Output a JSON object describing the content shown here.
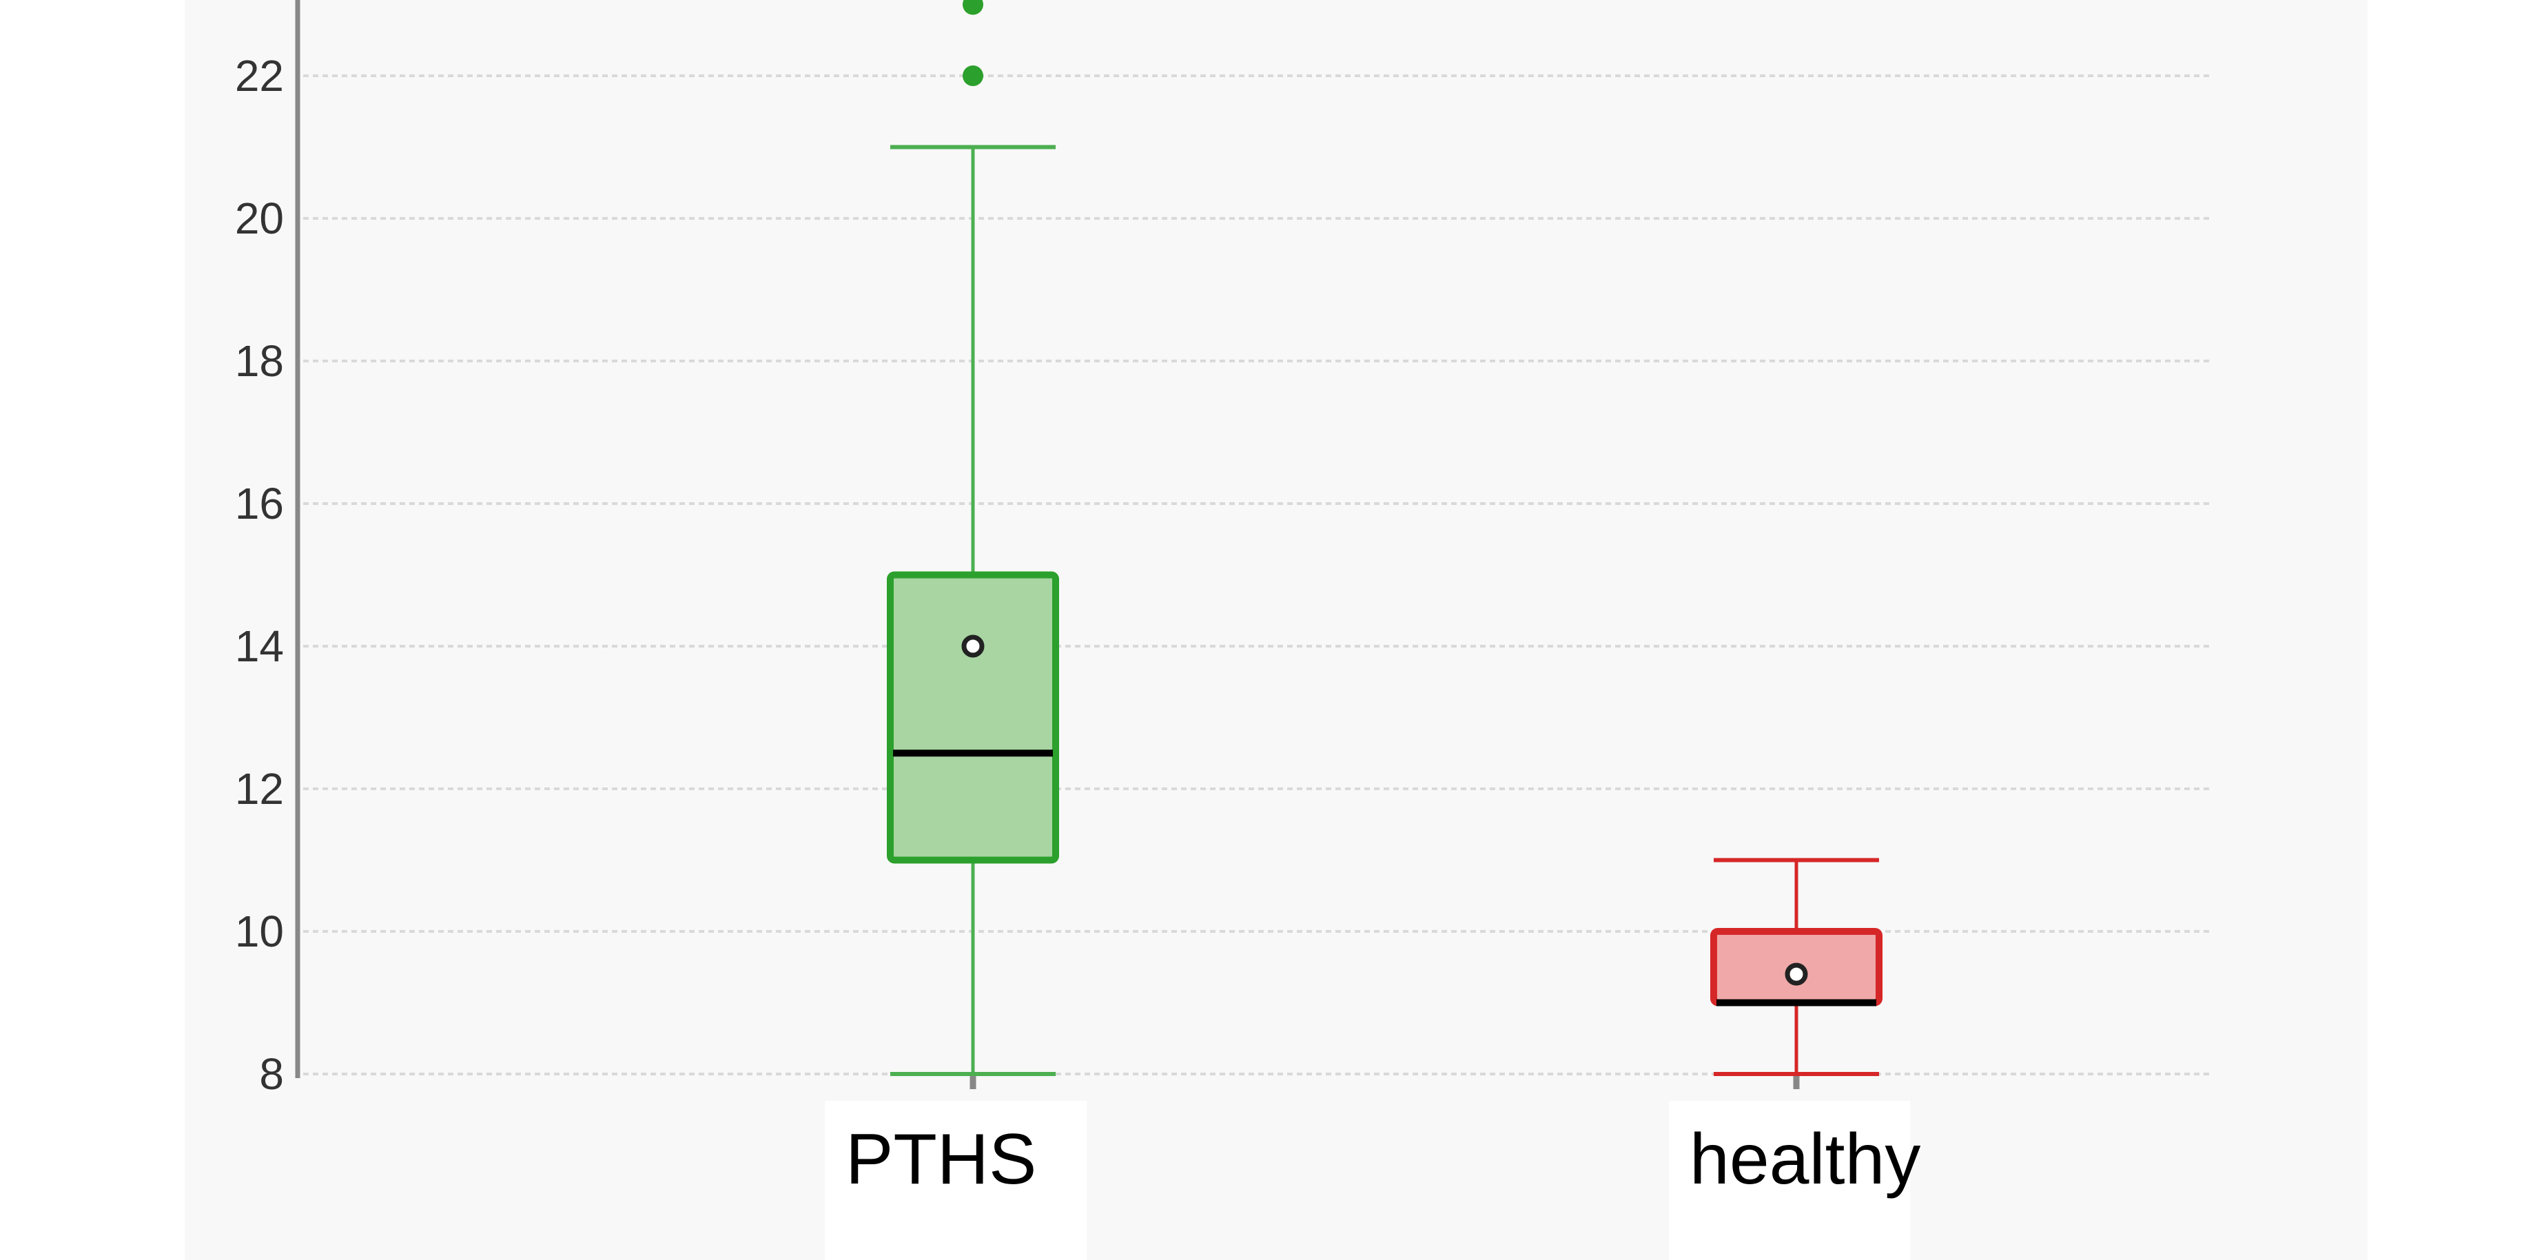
{
  "chart_data": {
    "type": "box",
    "title": "",
    "xlabel": "",
    "ylabel": "",
    "ylim": [
      8,
      23
    ],
    "yticks": [
      8,
      10,
      12,
      14,
      16,
      18,
      20,
      22
    ],
    "grid": true,
    "categories": [
      "PTHS",
      "healthy"
    ],
    "boxes": [
      {
        "label": "PTHS",
        "whisker_low": 8,
        "q1": 11,
        "median": 12.5,
        "q3": 15,
        "whisker_high": 21,
        "mean": 14,
        "outliers": [
          22,
          23
        ],
        "fill": "#a8d5a2",
        "stroke": "#2ca02c",
        "whisker_color": "#4caf50",
        "outlier_color": "#2ca02c"
      },
      {
        "label": "healthy",
        "whisker_low": 8,
        "q1": 9,
        "median": 9,
        "q3": 10,
        "whisker_high": 11,
        "mean": 9.4,
        "outliers": [],
        "fill": "#f0a8a8",
        "stroke": "#d62728",
        "whisker_color": "#d62728",
        "outlier_color": "#d62728"
      }
    ]
  },
  "colors": {
    "panel_background": "#f8f8f8",
    "grid": "#d9d9d9",
    "axis": "#888888",
    "median": "#000000"
  }
}
